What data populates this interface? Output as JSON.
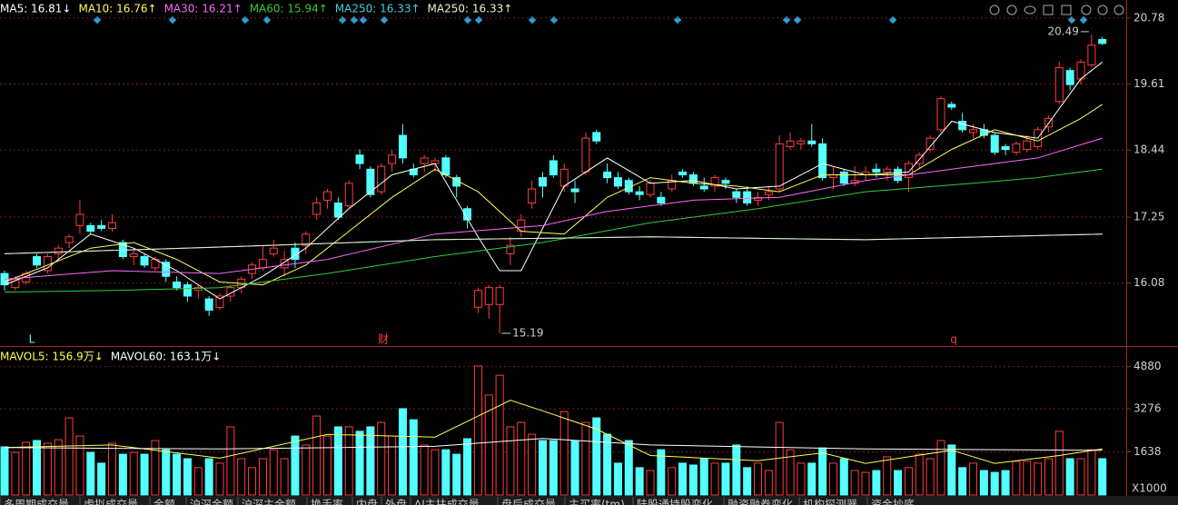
{
  "chart_data": [
    {
      "type": "candlestick",
      "up_color": "#ff3c3c",
      "down_color": "#54ffff",
      "ylim": [
        14.98,
        21.1
      ],
      "yticks": [
        16.08,
        17.25,
        18.44,
        19.61,
        20.78
      ],
      "grid": true,
      "open": [
        16.25,
        16.0,
        16.1,
        16.55,
        16.3,
        16.6,
        16.8,
        17.1,
        17.1,
        17.1,
        17.05,
        16.8,
        16.55,
        16.55,
        16.35,
        16.45,
        16.1,
        16.05,
        15.95,
        15.8,
        15.65,
        15.85,
        16.0,
        16.25,
        16.35,
        16.6,
        16.35,
        16.7,
        16.75,
        17.3,
        17.55,
        17.5,
        17.45,
        18.35,
        18.1,
        17.7,
        18.2,
        18.7,
        18.1,
        18.2,
        18.2,
        18.3,
        17.95,
        17.4,
        15.65,
        15.7,
        15.7,
        16.6,
        17.0,
        17.5,
        17.95,
        18.25,
        17.8,
        17.75,
        18.05,
        18.75,
        18.05,
        17.95,
        17.9,
        17.7,
        17.65,
        17.6,
        17.75,
        18.05,
        18.0,
        17.8,
        17.8,
        17.9,
        17.7,
        17.7,
        17.55,
        17.65,
        17.75,
        18.5,
        18.55,
        18.6,
        18.55,
        17.95,
        18.05,
        17.85,
        18.0,
        18.1,
        18.05,
        18.1,
        17.95,
        18.2,
        18.45,
        18.8,
        19.25,
        18.95,
        18.75,
        18.8,
        18.7,
        18.5,
        18.4,
        18.45,
        18.5,
        18.85,
        19.3,
        19.85,
        19.7,
        19.95,
        20.4
      ],
      "high": [
        16.3,
        16.2,
        16.3,
        16.6,
        16.6,
        16.75,
        16.95,
        17.55,
        17.15,
        17.2,
        17.3,
        16.85,
        16.7,
        16.6,
        16.55,
        16.5,
        16.2,
        16.1,
        16.05,
        15.85,
        15.9,
        16.05,
        16.2,
        16.45,
        16.75,
        16.85,
        16.65,
        16.8,
        17.0,
        17.6,
        17.75,
        17.6,
        17.9,
        18.45,
        18.15,
        18.2,
        18.45,
        18.9,
        18.2,
        18.35,
        18.3,
        18.35,
        18.0,
        17.45,
        16.0,
        16.05,
        16.05,
        16.9,
        17.3,
        17.9,
        18.05,
        18.35,
        18.2,
        17.9,
        18.75,
        18.8,
        18.2,
        18.05,
        17.95,
        17.8,
        17.9,
        17.7,
        18.0,
        18.1,
        18.05,
        17.95,
        18.0,
        17.95,
        17.75,
        17.8,
        17.7,
        17.8,
        18.7,
        18.75,
        18.65,
        18.9,
        18.65,
        18.15,
        18.1,
        18.15,
        18.15,
        18.2,
        18.15,
        18.15,
        18.25,
        18.4,
        18.7,
        19.4,
        19.3,
        19.1,
        18.9,
        18.9,
        18.75,
        18.55,
        18.6,
        18.7,
        18.85,
        19.05,
        20.0,
        19.9,
        20.05,
        20.49,
        20.45
      ],
      "low": [
        15.95,
        15.95,
        16.05,
        16.35,
        16.25,
        16.5,
        16.7,
        16.95,
        16.95,
        17.0,
        17.0,
        16.5,
        16.4,
        16.35,
        16.3,
        16.1,
        15.95,
        15.75,
        15.8,
        15.5,
        15.6,
        15.75,
        15.9,
        16.15,
        16.3,
        16.55,
        16.2,
        16.35,
        16.6,
        17.2,
        17.4,
        17.2,
        17.4,
        18.1,
        17.6,
        17.65,
        18.05,
        18.2,
        17.95,
        18.05,
        18.05,
        17.95,
        17.6,
        17.05,
        15.55,
        15.45,
        15.19,
        16.4,
        16.9,
        17.4,
        17.6,
        17.95,
        17.7,
        17.5,
        18.0,
        18.55,
        17.85,
        17.75,
        17.65,
        17.55,
        17.6,
        17.45,
        17.7,
        17.95,
        17.8,
        17.7,
        17.7,
        17.75,
        17.5,
        17.45,
        17.45,
        17.55,
        17.7,
        18.45,
        18.45,
        18.5,
        17.9,
        17.75,
        17.8,
        17.8,
        17.9,
        17.95,
        17.9,
        17.85,
        17.7,
        18.1,
        18.4,
        18.75,
        19.15,
        18.75,
        18.65,
        18.65,
        18.35,
        18.35,
        18.35,
        18.4,
        18.45,
        18.75,
        19.25,
        19.5,
        19.6,
        19.9,
        20.3
      ],
      "close": [
        16.05,
        16.15,
        16.25,
        16.4,
        16.55,
        16.7,
        16.9,
        17.3,
        17.0,
        17.05,
        17.15,
        16.55,
        16.6,
        16.4,
        16.5,
        16.2,
        16.0,
        15.85,
        16.0,
        15.6,
        15.85,
        16.0,
        16.15,
        16.4,
        16.5,
        16.7,
        16.5,
        16.5,
        16.95,
        17.5,
        17.7,
        17.25,
        17.85,
        18.2,
        17.65,
        18.15,
        18.35,
        18.3,
        18.0,
        18.3,
        18.25,
        18.0,
        17.8,
        17.2,
        15.95,
        16.0,
        16.0,
        16.75,
        17.2,
        17.75,
        17.8,
        18.0,
        18.1,
        17.7,
        18.65,
        18.6,
        17.95,
        17.8,
        17.7,
        17.65,
        17.85,
        17.5,
        17.9,
        18.0,
        17.85,
        17.75,
        17.95,
        17.85,
        17.6,
        17.5,
        17.6,
        17.7,
        18.55,
        18.6,
        18.6,
        18.55,
        17.95,
        18.0,
        17.85,
        17.9,
        18.05,
        18.05,
        18.1,
        17.9,
        18.2,
        18.35,
        18.65,
        19.35,
        19.2,
        18.8,
        18.8,
        18.7,
        18.4,
        18.45,
        18.55,
        18.6,
        18.8,
        19.0,
        19.9,
        19.6,
        20.0,
        20.3,
        20.33
      ],
      "lines": [
        {
          "name": "MA5: 16.81↓",
          "color": "#ffffff",
          "x": [
            0,
            4,
            8,
            12,
            16,
            20,
            24,
            28,
            32,
            36,
            40,
            44,
            46,
            48,
            52,
            56,
            60,
            64,
            68,
            72,
            76,
            80,
            84,
            88,
            92,
            96,
            100,
            102
          ],
          "values": [
            16.05,
            16.35,
            16.95,
            16.7,
            16.3,
            15.8,
            16.2,
            16.7,
            17.4,
            18.0,
            18.2,
            16.9,
            16.3,
            16.3,
            17.8,
            18.3,
            17.85,
            17.9,
            17.75,
            17.8,
            18.2,
            18.0,
            18.05,
            18.95,
            18.75,
            18.65,
            19.7,
            20.0
          ]
        },
        {
          "name": "MA10: 16.76↑",
          "color": "#ffff54",
          "x": [
            0,
            8,
            12,
            16,
            20,
            24,
            28,
            32,
            36,
            40,
            44,
            48,
            52,
            56,
            60,
            64,
            68,
            72,
            76,
            80,
            84,
            88,
            92,
            96,
            100,
            102
          ],
          "values": [
            16.1,
            16.7,
            16.8,
            16.5,
            16.1,
            16.05,
            16.4,
            17.0,
            17.6,
            18.1,
            17.7,
            17.0,
            16.95,
            17.6,
            17.95,
            17.85,
            17.8,
            17.7,
            18.0,
            18.0,
            18.0,
            18.45,
            18.8,
            18.6,
            19.0,
            19.25
          ]
        },
        {
          "name": "MA30: 16.21↑",
          "color": "#ff66ff",
          "x": [
            0,
            10,
            20,
            30,
            40,
            50,
            56,
            64,
            72,
            80,
            88,
            96,
            102
          ],
          "values": [
            16.15,
            16.3,
            16.25,
            16.5,
            16.95,
            17.1,
            17.35,
            17.55,
            17.6,
            17.9,
            18.1,
            18.3,
            18.65
          ]
        },
        {
          "name": "MA60: 15.94↑",
          "color": "#33cc33",
          "x": [
            0,
            10,
            20,
            30,
            40,
            50,
            60,
            70,
            80,
            90,
            96,
            102
          ],
          "values": [
            15.92,
            15.95,
            16.0,
            16.25,
            16.55,
            16.8,
            17.15,
            17.4,
            17.7,
            17.85,
            17.95,
            18.1
          ]
        },
        {
          "name": "MA250: 16.33↑",
          "color": "#3fd0e0",
          "x": [
            0,
            20,
            40,
            60,
            80,
            102
          ],
          "values": [
            16.6,
            16.72,
            16.85,
            16.9,
            16.85,
            16.95
          ]
        },
        {
          "name": "MA250: 16.33↑",
          "color": "#f0f0d0",
          "x": [
            0,
            20,
            40,
            60,
            80,
            102
          ],
          "values": [
            16.6,
            16.72,
            16.85,
            16.9,
            16.85,
            16.95
          ]
        }
      ],
      "annotations": [
        20.49,
        15.19
      ],
      "event_labels": [
        "L",
        "财",
        "q"
      ]
    },
    {
      "type": "volume",
      "ylim": [
        0,
        5590
      ],
      "yticks": [
        1638,
        3276,
        4880
      ],
      "grid": true,
      "y_unit_label": "X1000",
      "values": [
        1830,
        1620,
        2000,
        2070,
        1970,
        2100,
        2930,
        2240,
        1620,
        1210,
        1970,
        1550,
        1620,
        1550,
        2070,
        1720,
        1550,
        1380,
        1040,
        1380,
        1210,
        2590,
        1380,
        1040,
        1380,
        1720,
        1380,
        2240,
        1900,
        3000,
        2240,
        2590,
        2590,
        2420,
        2590,
        2760,
        2240,
        3280,
        2860,
        1900,
        1720,
        1720,
        1550,
        2140,
        4900,
        3800,
        4550,
        2590,
        2760,
        2310,
        2070,
        2070,
        3170,
        2070,
        2760,
        2930,
        2310,
        1210,
        2070,
        1040,
        930,
        1720,
        1040,
        1210,
        1140,
        1380,
        1210,
        1210,
        1900,
        1040,
        1210,
        930,
        2760,
        1720,
        1210,
        1210,
        1790,
        1210,
        1380,
        930,
        860,
        930,
        1450,
        930,
        1040,
        1550,
        1380,
        2070,
        1900,
        1040,
        1210,
        930,
        860,
        930,
        1280,
        1280,
        1210,
        1380,
        2420,
        1380,
        1380,
        1720,
        1380
      ],
      "lines": [
        {
          "name": "MAVOL5: 156.9万↓",
          "color": "#ffff54",
          "x": [
            0,
            10,
            20,
            30,
            40,
            44,
            47,
            50,
            55,
            60,
            70,
            76,
            80,
            88,
            92,
            98,
            102
          ],
          "values": [
            1800,
            1900,
            1400,
            2300,
            2200,
            3000,
            3600,
            3200,
            2500,
            1500,
            1300,
            1600,
            1200,
            1700,
            1200,
            1500,
            1750
          ]
        },
        {
          "name": "MAVOL60: 163.1万↓",
          "color": "#ffffff",
          "x": [
            0,
            20,
            40,
            50,
            60,
            80,
            102
          ],
          "values": [
            1800,
            1750,
            1850,
            2150,
            1900,
            1750,
            1700
          ]
        }
      ]
    }
  ],
  "tabs": [
    "多周期成交量",
    "虚拟成交量",
    "金额",
    "沪深金额",
    "沪深主金额",
    "换手率",
    "内盘",
    "外盘",
    "AI主扶成交量",
    "盘后成交量",
    "主买率(tm)",
    "陆股通持股变化",
    "融资融券变化",
    "机构探测器",
    "资金抄底"
  ]
}
